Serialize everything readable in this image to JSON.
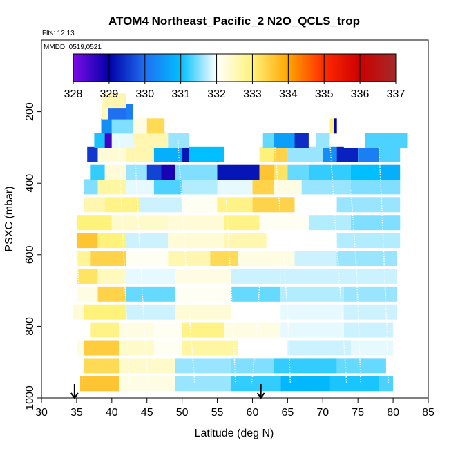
{
  "chart_data": {
    "type": "heatmap",
    "title": "ATOM4 Northeast_Pacific_2 N2O_QCLS_trop",
    "flights_label": "Flts: 12,13",
    "dates_label": "MMDD: 0519,0521",
    "xlabel": "Latitude (deg N)",
    "ylabel": "PSXC (mbar)",
    "xlim": [
      30,
      85
    ],
    "ylim": [
      1000,
      0
    ],
    "x_ticks": [
      "30",
      "35",
      "40",
      "45",
      "50",
      "55",
      "60",
      "65",
      "70",
      "75",
      "80",
      "85"
    ],
    "y_ticks": [
      "200",
      "400",
      "600",
      "800",
      "1000"
    ],
    "colorbar": {
      "range": [
        328,
        337
      ],
      "ticks": [
        "328",
        "329",
        "330",
        "331",
        "332",
        "333",
        "334",
        "335",
        "336",
        "337"
      ],
      "colors": [
        "#7d0ce8",
        "#0000a8",
        "#1f6ff0",
        "#00bfff",
        "#ffffff",
        "#fff27a",
        "#ffa500",
        "#ff2a00",
        "#cc0000",
        "#a52a2a"
      ]
    },
    "arrows_latitude": [
      34.7,
      61.2
    ],
    "layers": [
      {
        "p": 960,
        "cells": [
          [
            35.5,
            41,
            333.6
          ],
          [
            41,
            49,
            332.2
          ],
          [
            49,
            57,
            331.6
          ],
          [
            57,
            64,
            331.2
          ],
          [
            64,
            71,
            330.9
          ],
          [
            71,
            78,
            331.1
          ],
          [
            78,
            80,
            331.3
          ]
        ]
      },
      {
        "p": 910,
        "cells": [
          [
            36,
            41,
            333.3
          ],
          [
            41,
            49,
            332.4
          ],
          [
            49,
            57,
            331.6
          ],
          [
            57,
            63,
            331.5
          ],
          [
            63,
            72,
            331.2
          ],
          [
            72,
            79,
            331.4
          ]
        ]
      },
      {
        "p": 860,
        "cells": [
          [
            35,
            36,
            332.2
          ],
          [
            36,
            41,
            333.5
          ],
          [
            41,
            46,
            332.4
          ],
          [
            46,
            50,
            332.1
          ],
          [
            50,
            58,
            332.7
          ],
          [
            58,
            65,
            332.0
          ],
          [
            65,
            74,
            331.8
          ],
          [
            74,
            80,
            331.9
          ]
        ]
      },
      {
        "p": 810,
        "cells": [
          [
            34.5,
            37,
            332.0
          ],
          [
            37,
            41,
            332.9
          ],
          [
            41,
            46,
            332.2
          ],
          [
            46,
            50,
            332.1
          ],
          [
            50,
            56,
            332.9
          ],
          [
            56,
            64,
            332.2
          ],
          [
            64,
            73,
            331.9
          ],
          [
            73,
            80,
            331.8
          ]
        ]
      },
      {
        "p": 760,
        "cells": [
          [
            34.5,
            36,
            332.3
          ],
          [
            36,
            42,
            333.0
          ],
          [
            42,
            49,
            331.8
          ],
          [
            49,
            57,
            332.3
          ],
          [
            57,
            64,
            332.0
          ],
          [
            64,
            73,
            331.9
          ],
          [
            73,
            80.5,
            331.8
          ]
        ]
      },
      {
        "p": 710,
        "cells": [
          [
            35,
            38,
            332.2
          ],
          [
            38,
            42,
            333.4
          ],
          [
            42,
            49,
            331.4
          ],
          [
            49,
            57,
            332.1
          ],
          [
            57,
            64,
            331.4
          ],
          [
            64,
            73,
            331.7
          ],
          [
            73,
            80.5,
            331.6
          ]
        ]
      },
      {
        "p": 660,
        "cells": [
          [
            35,
            38,
            333.2
          ],
          [
            38,
            42,
            332.5
          ],
          [
            42,
            49,
            331.9
          ],
          [
            49,
            57,
            332.2
          ],
          [
            57,
            64,
            331.8
          ],
          [
            64,
            72,
            331.8
          ],
          [
            72,
            80.5,
            331.8
          ]
        ]
      },
      {
        "p": 610,
        "cells": [
          [
            35,
            37,
            332.8
          ],
          [
            37,
            42,
            333.4
          ],
          [
            42,
            48,
            332.1
          ],
          [
            48,
            54,
            332.6
          ],
          [
            54,
            58,
            333.3
          ],
          [
            58,
            66,
            332.2
          ],
          [
            66,
            72,
            331.8
          ],
          [
            72,
            80.5,
            331.6
          ]
        ]
      },
      {
        "p": 560,
        "cells": [
          [
            35,
            38,
            333.6
          ],
          [
            38,
            42,
            333.0
          ],
          [
            42,
            48,
            331.8
          ],
          [
            48,
            56,
            332.3
          ],
          [
            56,
            62,
            332.6
          ],
          [
            62,
            72,
            332.0
          ],
          [
            72,
            81,
            331.7
          ]
        ]
      },
      {
        "p": 510,
        "cells": [
          [
            35,
            40,
            333.0
          ],
          [
            40,
            48,
            332.4
          ],
          [
            48,
            56,
            332.3
          ],
          [
            56,
            61,
            332.9
          ],
          [
            61,
            68,
            332.1
          ],
          [
            68,
            74,
            331.7
          ],
          [
            74,
            81,
            331.5
          ]
        ]
      },
      {
        "p": 460,
        "cells": [
          [
            36,
            39,
            332.6
          ],
          [
            39,
            44,
            332.9
          ],
          [
            44,
            50,
            331.8
          ],
          [
            50,
            55,
            332.1
          ],
          [
            55,
            60,
            332.9
          ],
          [
            60,
            66,
            333.4
          ],
          [
            66,
            72,
            332.0
          ],
          [
            72,
            81,
            331.6
          ]
        ]
      },
      {
        "p": 410,
        "cells": [
          [
            36,
            38,
            331.5
          ],
          [
            38,
            42,
            332.7
          ],
          [
            42,
            46,
            331.9
          ],
          [
            46,
            50,
            331.3
          ],
          [
            50,
            55,
            331.7
          ],
          [
            55,
            60,
            331.9
          ],
          [
            60,
            63,
            333.4
          ],
          [
            63,
            67,
            332.2
          ],
          [
            67,
            74,
            331.6
          ],
          [
            74,
            81,
            331.5
          ]
        ]
      },
      {
        "p": 370,
        "cells": [
          [
            37,
            39,
            331.2
          ],
          [
            39,
            42,
            332.3
          ],
          [
            42,
            45,
            331.6
          ],
          [
            45,
            47,
            329.6
          ],
          [
            47,
            49,
            328.8
          ],
          [
            49,
            55,
            331.5
          ],
          [
            55,
            61,
            329.2
          ],
          [
            61,
            63,
            333.6
          ],
          [
            63,
            65,
            333.2
          ],
          [
            65,
            68,
            331.4
          ],
          [
            68,
            74,
            331.2
          ],
          [
            74,
            78,
            331.0
          ],
          [
            78,
            81,
            330.8
          ]
        ]
      },
      {
        "p": 320,
        "cells": [
          [
            36.5,
            38,
            329.5
          ],
          [
            38,
            42,
            332.3
          ],
          [
            42,
            46,
            332.6
          ],
          [
            46,
            50,
            330.8
          ],
          [
            50,
            51,
            329.2
          ],
          [
            51,
            56,
            331.0
          ],
          [
            61,
            63,
            333.0
          ],
          [
            63,
            65,
            333.4
          ],
          [
            65,
            70,
            331.6
          ],
          [
            70,
            72,
            330.4
          ],
          [
            72,
            75,
            329.3
          ],
          [
            75,
            78,
            330.2
          ],
          [
            78,
            81,
            331.3
          ]
        ]
      },
      {
        "p": 280,
        "cells": [
          [
            37.5,
            39,
            331.1
          ],
          [
            39,
            40,
            328.5
          ],
          [
            40,
            43,
            331.9
          ],
          [
            43,
            48,
            332.6
          ],
          [
            48,
            51,
            331.6
          ],
          [
            61.5,
            63,
            331.4
          ],
          [
            63,
            66,
            330.6
          ],
          [
            66,
            68,
            329.4
          ],
          [
            69,
            71,
            331.6
          ],
          [
            73,
            76,
            332.0
          ],
          [
            76,
            82,
            331.3
          ]
        ]
      },
      {
        "p": 240,
        "cells": [
          [
            38.5,
            40,
            330.4
          ],
          [
            40,
            43,
            331.5
          ],
          [
            43,
            45,
            332.2
          ],
          [
            45,
            47.5,
            333.3
          ],
          [
            71,
            71.6,
            333.0
          ],
          [
            71.6,
            72,
            329.0
          ]
        ]
      },
      {
        "p": 200,
        "cells": [
          [
            38.6,
            39.5,
            332.5
          ],
          [
            39.5,
            42,
            330.0
          ],
          [
            42,
            43,
            330.2
          ]
        ]
      },
      {
        "p": 170,
        "cells": [
          [
            38.7,
            42,
            332.6
          ]
        ]
      }
    ]
  }
}
